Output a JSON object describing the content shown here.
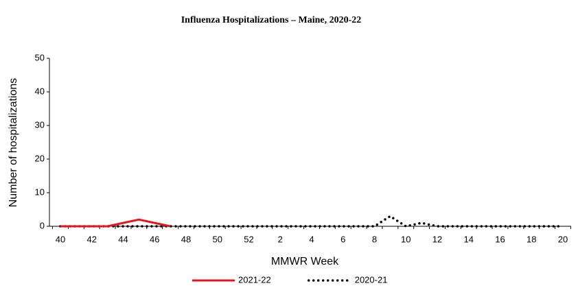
{
  "chart_data": {
    "type": "line",
    "title": "Influenza Hospitalizations – Maine, 2020-22",
    "x_label": "MMWR Week",
    "y_label": "Number of hospitalizations",
    "categories": [
      "40",
      null,
      "42",
      null,
      "44",
      null,
      "46",
      null,
      "48",
      null,
      "50",
      null,
      "52",
      null,
      "2",
      null,
      "4",
      null,
      "6",
      null,
      "8",
      null,
      "10",
      null,
      "12",
      null,
      "14",
      null,
      "16",
      null,
      "18",
      null,
      "20"
    ],
    "series": [
      {
        "name": "2021-22",
        "color": "#e8141b",
        "style": "solid",
        "values": [
          0,
          0,
          0,
          0,
          1,
          2,
          1,
          0,
          null,
          null,
          null,
          null,
          null,
          null,
          null,
          null,
          null,
          null,
          null,
          null,
          null,
          null,
          null,
          null,
          null,
          null,
          null,
          null,
          null,
          null,
          null,
          null,
          null
        ]
      },
      {
        "name": "2020-21",
        "color": "#000000",
        "style": "dotted",
        "values": [
          0,
          0,
          0,
          0,
          0,
          0,
          0,
          0,
          0,
          0,
          0,
          0,
          0,
          0,
          0,
          0,
          0,
          0,
          0,
          0,
          0,
          3,
          0,
          1,
          0,
          0,
          0,
          0,
          0,
          0,
          0,
          0,
          0
        ]
      }
    ],
    "ylim": [
      0,
      50
    ],
    "yticks": [
      0,
      10,
      20,
      30,
      40,
      50
    ],
    "grid": false,
    "legend": "bottom"
  }
}
